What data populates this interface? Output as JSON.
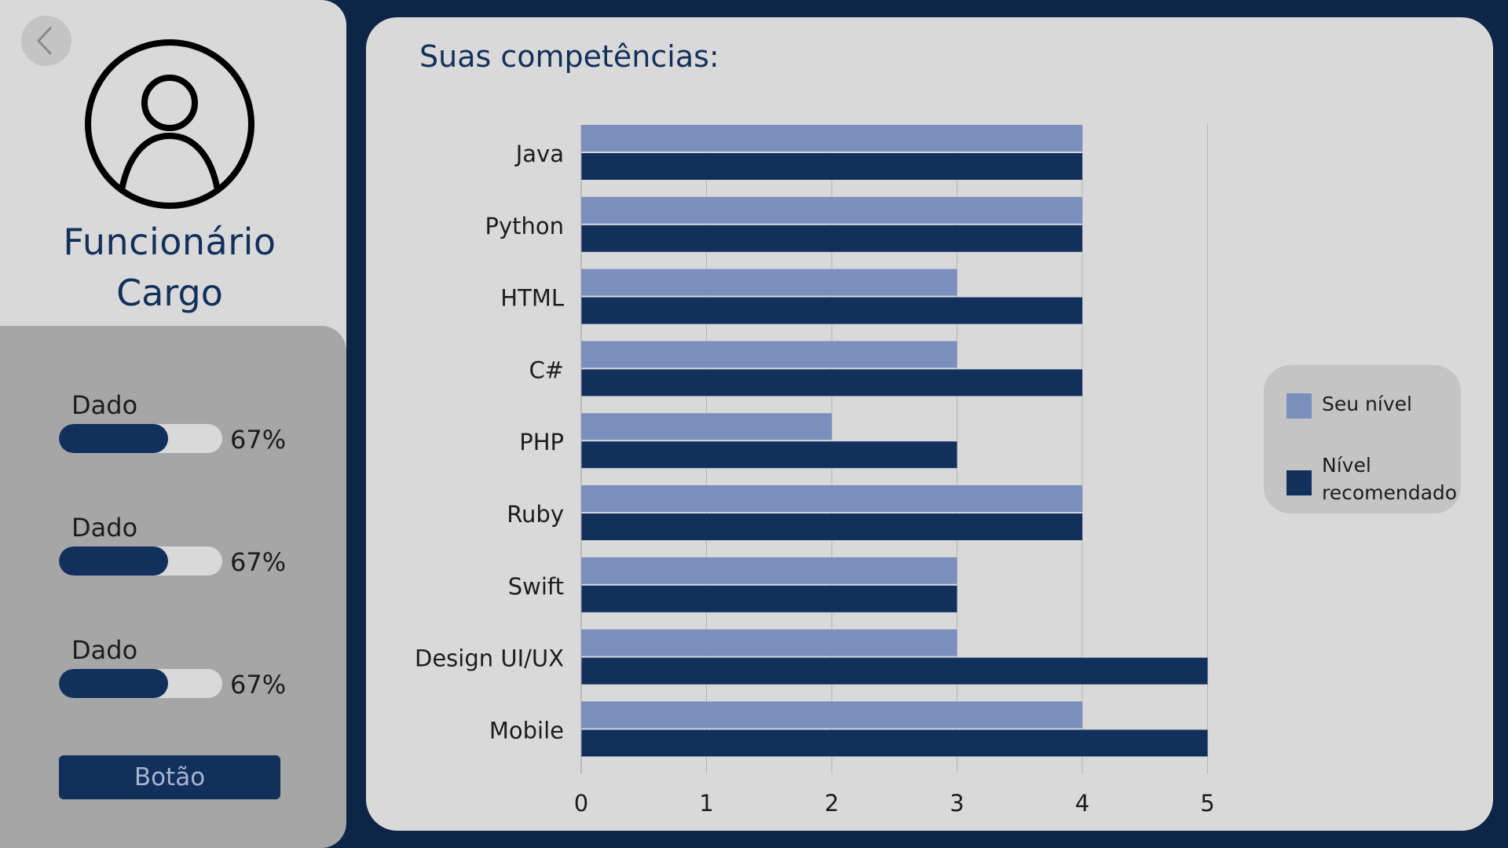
{
  "sidebar": {
    "back_icon": "chevron-left-icon",
    "avatar_icon": "user-avatar-icon",
    "name": "Funcionário",
    "role": "Cargo",
    "stats": [
      {
        "label": "Dado",
        "value": "67%",
        "fraction": 0.67
      },
      {
        "label": "Dado",
        "value": "67%",
        "fraction": 0.67
      },
      {
        "label": "Dado",
        "value": "67%",
        "fraction": 0.67
      }
    ],
    "button_label": "Botão"
  },
  "main": {
    "title": "Suas competências:"
  },
  "chart_data": {
    "type": "bar",
    "orientation": "horizontal",
    "categories": [
      "Java",
      "Python",
      "HTML",
      "C#",
      "PHP",
      "Ruby",
      "Swift",
      "Design UI/UX",
      "Mobile"
    ],
    "series": [
      {
        "name": "Seu nível",
        "color": "#7a8fbe",
        "values": [
          4,
          4,
          3,
          3,
          2,
          4,
          3,
          3,
          4
        ]
      },
      {
        "name": "Nível recomendado",
        "color": "#12305c",
        "values": [
          4,
          4,
          4,
          4,
          3,
          4,
          3,
          5,
          5
        ]
      }
    ],
    "xlim": [
      0,
      5
    ],
    "x_ticks": [
      "0",
      "1",
      "2",
      "3",
      "4",
      "5"
    ],
    "grid": "vertical",
    "legend_position": "right"
  }
}
